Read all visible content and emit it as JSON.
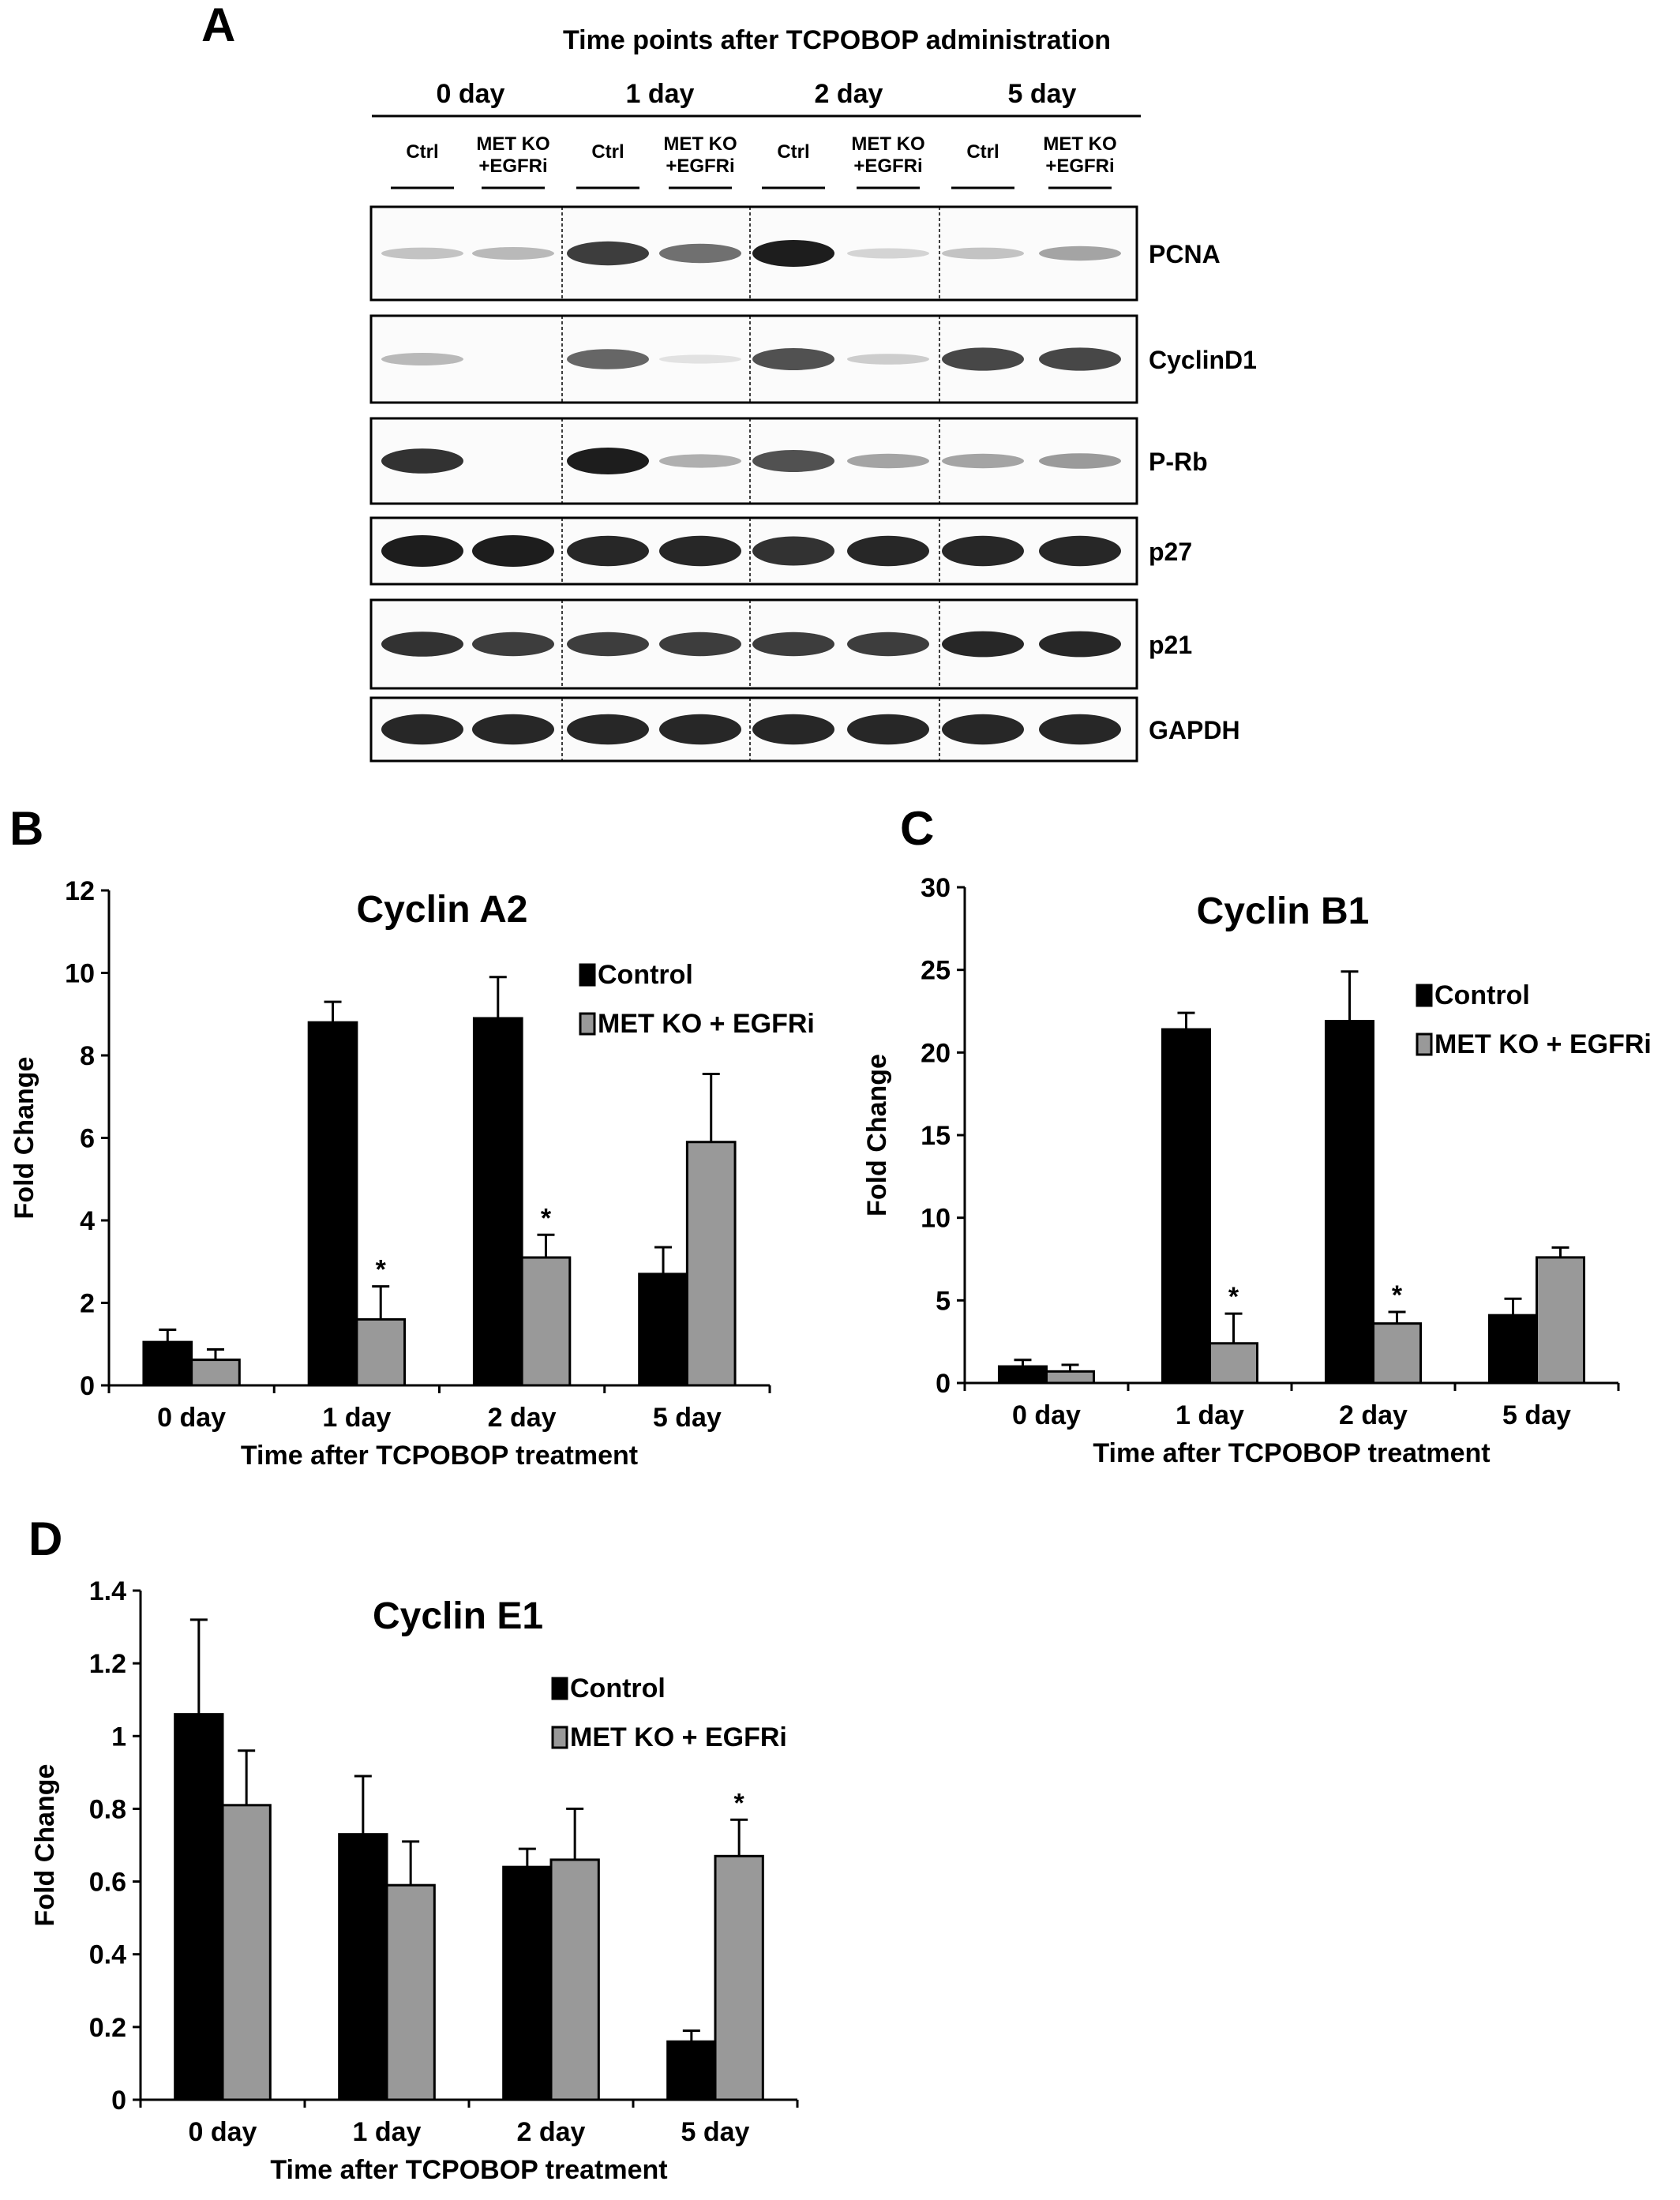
{
  "panels": {
    "a": "A",
    "b": "B",
    "c": "C",
    "d": "D"
  },
  "blot": {
    "title": "Time points after TCPOBOP administration",
    "timepoints": [
      "0 day",
      "1 day",
      "2 day",
      "5 day"
    ],
    "lane_labels": [
      "Ctrl",
      "MET KO\n+EGFRi",
      "Ctrl",
      "MET KO\n+EGFRi",
      "Ctrl",
      "MET KO\n+EGFRi",
      "Ctrl",
      "MET KO\n+EGFRi"
    ],
    "proteins": [
      {
        "name": "PCNA",
        "intensity": [
          0.2,
          0.25,
          0.85,
          0.6,
          1.0,
          0.12,
          0.2,
          0.35
        ]
      },
      {
        "name": "CyclinD1",
        "intensity": [
          0.25,
          0.0,
          0.65,
          0.05,
          0.75,
          0.15,
          0.8,
          0.8
        ]
      },
      {
        "name": "P-Rb",
        "intensity": [
          0.9,
          0.0,
          1.0,
          0.3,
          0.75,
          0.35,
          0.35,
          0.4
        ]
      },
      {
        "name": "p27",
        "intensity": [
          1.0,
          1.0,
          0.95,
          0.95,
          0.9,
          0.95,
          0.95,
          0.95
        ]
      },
      {
        "name": "p21",
        "intensity": [
          0.9,
          0.85,
          0.85,
          0.85,
          0.85,
          0.85,
          0.95,
          0.95
        ]
      },
      {
        "name": "GAPDH",
        "intensity": [
          0.95,
          0.95,
          0.95,
          0.95,
          0.95,
          0.95,
          0.95,
          0.95
        ]
      }
    ]
  },
  "legend": {
    "control": "Control",
    "treated": "MET KO + EGFRi"
  },
  "colors": {
    "control": "#000000",
    "treated": "#999999"
  },
  "chart_data": [
    {
      "type": "bar",
      "title": "Cyclin A2",
      "xlabel": "Time after TCPOBOP treatment",
      "ylabel": "Fold Change",
      "categories": [
        "0 day",
        "1 day",
        "2 day",
        "5 day"
      ],
      "ylim": [
        0,
        12
      ],
      "yticks": [
        "0",
        "2",
        "4",
        "6",
        "8",
        "10",
        "12"
      ],
      "series": [
        {
          "name": "Control",
          "values": [
            1.05,
            8.8,
            8.9,
            2.7
          ],
          "errors": [
            0.3,
            0.5,
            1.0,
            0.65
          ]
        },
        {
          "name": "MET KO + EGFRi",
          "values": [
            0.62,
            1.6,
            3.1,
            5.9
          ],
          "errors": [
            0.25,
            0.8,
            0.55,
            1.65
          ]
        }
      ],
      "significance": [
        null,
        "*",
        "*",
        null
      ],
      "legend_position": "top-right"
    },
    {
      "type": "bar",
      "title": "Cyclin B1",
      "xlabel": "Time after TCPOBOP treatment",
      "ylabel": "Fold Change",
      "categories": [
        "0 day",
        "1 day",
        "2 day",
        "5 day"
      ],
      "ylim": [
        0,
        30
      ],
      "yticks": [
        "0",
        "5",
        "10",
        "15",
        "20",
        "25",
        "30"
      ],
      "series": [
        {
          "name": "Control",
          "values": [
            1.0,
            21.4,
            21.9,
            4.1
          ],
          "errors": [
            0.4,
            1.0,
            3.0,
            1.0
          ]
        },
        {
          "name": "MET KO + EGFRi",
          "values": [
            0.7,
            2.4,
            3.6,
            7.6
          ],
          "errors": [
            0.4,
            1.8,
            0.7,
            0.6
          ]
        }
      ],
      "significance": [
        null,
        "*",
        "*",
        null
      ],
      "legend_position": "top-right"
    },
    {
      "type": "bar",
      "title": "Cyclin E1",
      "xlabel": "Time after TCPOBOP treatment",
      "ylabel": "Fold Change",
      "categories": [
        "0 day",
        "1 day",
        "2 day",
        "5 day"
      ],
      "ylim": [
        0,
        1.4
      ],
      "yticks": [
        "0",
        "0.2",
        "0.4",
        "0.6",
        "0.8",
        "1",
        "1.2",
        "1.4"
      ],
      "series": [
        {
          "name": "Control",
          "values": [
            1.06,
            0.73,
            0.64,
            0.16
          ],
          "errors": [
            0.26,
            0.16,
            0.05,
            0.03
          ]
        },
        {
          "name": "MET KO + EGFRi",
          "values": [
            0.81,
            0.59,
            0.66,
            0.67
          ],
          "errors": [
            0.15,
            0.12,
            0.14,
            0.1
          ]
        }
      ],
      "significance": [
        null,
        null,
        null,
        "*"
      ],
      "legend_position": "top-right"
    }
  ]
}
